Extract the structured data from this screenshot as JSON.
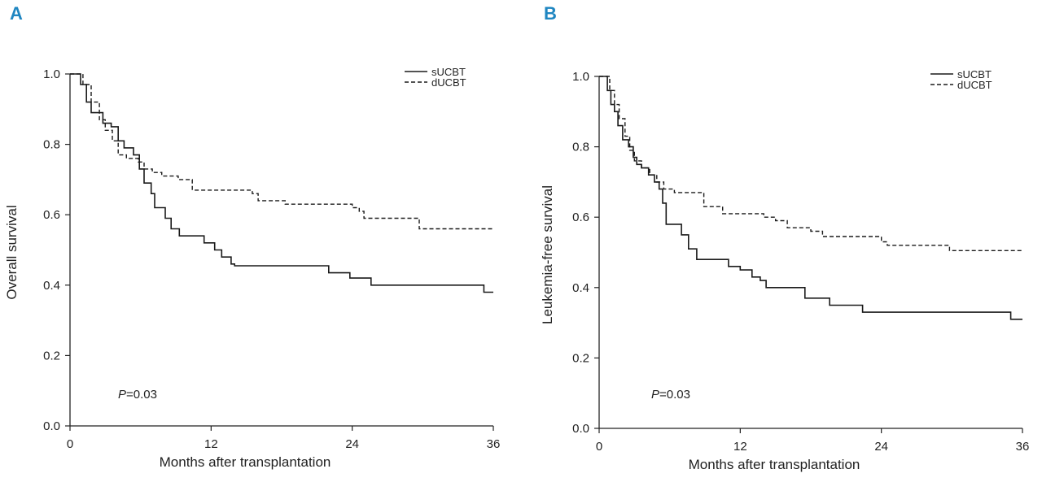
{
  "chart_data": [
    {
      "type": "line",
      "panel_label": "A",
      "xlabel": "Months after transplantation",
      "ylabel": "Overall survival",
      "xlim": [
        0,
        36
      ],
      "ylim": [
        0,
        1
      ],
      "xticks": [
        "0",
        "12",
        "24",
        "36"
      ],
      "yticks": [
        "0.0",
        "0.2",
        "0.4",
        "0.6",
        "0.8",
        "1.0"
      ],
      "annotation": {
        "italic": "P",
        "rest": "=0.03"
      },
      "legend_position": "top-right",
      "series": [
        {
          "name": "sUCBT",
          "style": "solid",
          "points": [
            [
              0,
              1.0
            ],
            [
              0.7,
              1.0
            ],
            [
              0.9,
              0.97
            ],
            [
              1.4,
              0.92
            ],
            [
              1.8,
              0.89
            ],
            [
              2.4,
              0.89
            ],
            [
              2.8,
              0.86
            ],
            [
              3.5,
              0.85
            ],
            [
              4.1,
              0.81
            ],
            [
              4.6,
              0.79
            ],
            [
              5.4,
              0.77
            ],
            [
              5.9,
              0.73
            ],
            [
              6.3,
              0.69
            ],
            [
              6.9,
              0.66
            ],
            [
              7.2,
              0.62
            ],
            [
              8.1,
              0.59
            ],
            [
              8.6,
              0.56
            ],
            [
              9.3,
              0.54
            ],
            [
              11.0,
              0.54
            ],
            [
              11.4,
              0.52
            ],
            [
              12.3,
              0.5
            ],
            [
              12.9,
              0.48
            ],
            [
              13.7,
              0.46
            ],
            [
              14.0,
              0.455
            ],
            [
              21.9,
              0.455
            ],
            [
              22.0,
              0.435
            ],
            [
              23.6,
              0.435
            ],
            [
              23.8,
              0.42
            ],
            [
              25.5,
              0.42
            ],
            [
              25.6,
              0.4
            ],
            [
              35.0,
              0.4
            ],
            [
              35.2,
              0.38
            ],
            [
              36,
              0.38
            ]
          ]
        },
        {
          "name": "dUCBT",
          "style": "dashed",
          "points": [
            [
              0,
              1.0
            ],
            [
              0.8,
              1.0
            ],
            [
              1.1,
              0.97
            ],
            [
              1.8,
              0.92
            ],
            [
              2.5,
              0.87
            ],
            [
              3.0,
              0.84
            ],
            [
              3.6,
              0.81
            ],
            [
              4.1,
              0.77
            ],
            [
              4.8,
              0.76
            ],
            [
              5.8,
              0.75
            ],
            [
              6.3,
              0.73
            ],
            [
              7.0,
              0.72
            ],
            [
              7.8,
              0.71
            ],
            [
              9.2,
              0.7
            ],
            [
              10.4,
              0.67
            ],
            [
              15.0,
              0.67
            ],
            [
              15.5,
              0.66
            ],
            [
              16.0,
              0.64
            ],
            [
              17.8,
              0.64
            ],
            [
              18.3,
              0.63
            ],
            [
              23.8,
              0.63
            ],
            [
              24.0,
              0.62
            ],
            [
              24.6,
              0.61
            ],
            [
              25.0,
              0.59
            ],
            [
              29.4,
              0.59
            ],
            [
              29.7,
              0.56
            ],
            [
              36,
              0.56
            ]
          ]
        }
      ]
    },
    {
      "type": "line",
      "panel_label": "B",
      "xlabel": "Months after transplantation",
      "ylabel": "Leukemia-free survival",
      "xlim": [
        0,
        36
      ],
      "ylim": [
        0,
        1
      ],
      "xticks": [
        "0",
        "12",
        "24",
        "36"
      ],
      "yticks": [
        "0.0",
        "0.2",
        "0.4",
        "0.6",
        "0.8",
        "1.0"
      ],
      "annotation": {
        "italic": "P",
        "rest": "=0.03"
      },
      "legend_position": "top-right",
      "series": [
        {
          "name": "sUCBT",
          "style": "solid",
          "points": [
            [
              0,
              1.0
            ],
            [
              0.5,
              1.0
            ],
            [
              0.7,
              0.96
            ],
            [
              1.0,
              0.92
            ],
            [
              1.3,
              0.9
            ],
            [
              1.6,
              0.86
            ],
            [
              2.0,
              0.82
            ],
            [
              2.5,
              0.8
            ],
            [
              2.9,
              0.77
            ],
            [
              3.2,
              0.75
            ],
            [
              3.6,
              0.74
            ],
            [
              4.2,
              0.72
            ],
            [
              4.7,
              0.7
            ],
            [
              5.1,
              0.68
            ],
            [
              5.4,
              0.64
            ],
            [
              5.7,
              0.58
            ],
            [
              6.7,
              0.58
            ],
            [
              7.0,
              0.55
            ],
            [
              7.6,
              0.51
            ],
            [
              8.3,
              0.48
            ],
            [
              10.5,
              0.48
            ],
            [
              11.0,
              0.46
            ],
            [
              12.0,
              0.45
            ],
            [
              13.0,
              0.43
            ],
            [
              13.7,
              0.42
            ],
            [
              14.2,
              0.4
            ],
            [
              17.2,
              0.4
            ],
            [
              17.5,
              0.37
            ],
            [
              19.3,
              0.37
            ],
            [
              19.6,
              0.35
            ],
            [
              22.0,
              0.35
            ],
            [
              22.4,
              0.33
            ],
            [
              34.9,
              0.33
            ],
            [
              35.0,
              0.31
            ],
            [
              36,
              0.31
            ]
          ]
        },
        {
          "name": "dUCBT",
          "style": "dashed",
          "points": [
            [
              0,
              1.0
            ],
            [
              0.6,
              1.0
            ],
            [
              0.9,
              0.96
            ],
            [
              1.3,
              0.92
            ],
            [
              1.7,
              0.88
            ],
            [
              2.2,
              0.83
            ],
            [
              2.6,
              0.79
            ],
            [
              3.0,
              0.76
            ],
            [
              3.6,
              0.74
            ],
            [
              4.3,
              0.72
            ],
            [
              4.9,
              0.7
            ],
            [
              5.5,
              0.68
            ],
            [
              6.4,
              0.67
            ],
            [
              8.5,
              0.67
            ],
            [
              8.9,
              0.63
            ],
            [
              10.0,
              0.63
            ],
            [
              10.5,
              0.61
            ],
            [
              13.5,
              0.61
            ],
            [
              14.0,
              0.6
            ],
            [
              15.0,
              0.59
            ],
            [
              16.0,
              0.57
            ],
            [
              17.5,
              0.57
            ],
            [
              18.0,
              0.56
            ],
            [
              19.0,
              0.545
            ],
            [
              23.6,
              0.545
            ],
            [
              24.0,
              0.53
            ],
            [
              24.5,
              0.52
            ],
            [
              29.4,
              0.52
            ],
            [
              29.8,
              0.505
            ],
            [
              36,
              0.505
            ]
          ]
        }
      ]
    }
  ]
}
